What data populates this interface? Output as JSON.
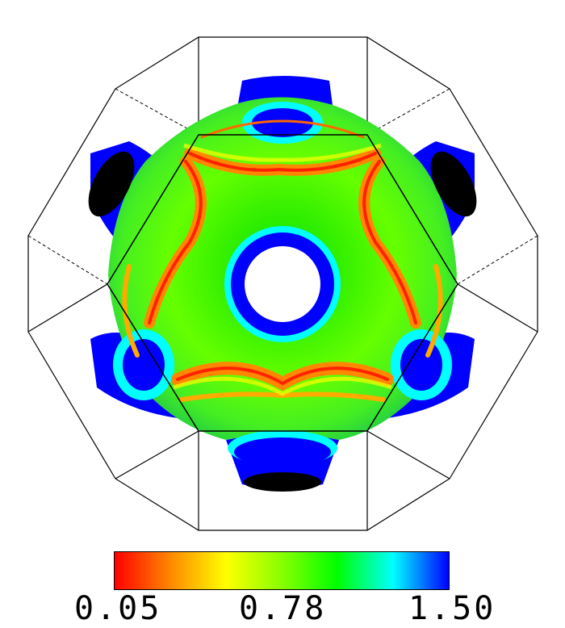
{
  "figure": {
    "colorscale": {
      "min_label": "0.05",
      "mid_label": "0.78",
      "max_label": "1.50",
      "stops": [
        "#ff0000",
        "#ff8800",
        "#ffff00",
        "#88ff00",
        "#00ff00",
        "#00ffff",
        "#0000ff"
      ]
    },
    "colors": {
      "low": "#ff0000",
      "mid": "#00ff00",
      "high": "#0000ff",
      "holes": "#000000",
      "edges": "#000000",
      "background": "#ffffff"
    }
  }
}
